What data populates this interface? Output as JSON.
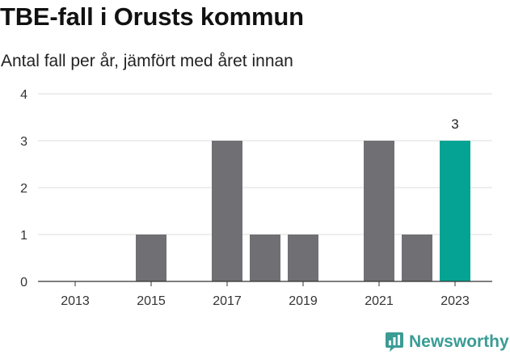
{
  "colors": {
    "bar": "#707074",
    "highlight": "#05a394",
    "grid": "#dddddd",
    "axis": "#333333",
    "brand": "#3a9c95"
  },
  "brand": {
    "name": "Newsworthy",
    "icon": "bar-chart-icon"
  },
  "chart_data": {
    "type": "bar",
    "title": "TBE-fall i Orusts kommun",
    "subtitle": "Antal fall per år, jämfört med året innan",
    "categories": [
      "2013",
      "2014",
      "2015",
      "2016",
      "2017",
      "2018",
      "2019",
      "2020",
      "2021",
      "2022",
      "2023"
    ],
    "values": [
      0,
      0,
      1,
      0,
      3,
      1,
      1,
      0,
      3,
      1,
      3
    ],
    "highlight_index": 10,
    "x_ticks": [
      "2013",
      "2015",
      "2017",
      "2019",
      "2021",
      "2023"
    ],
    "y_ticks": [
      0,
      1,
      2,
      3,
      4
    ],
    "ylim": [
      0,
      4
    ],
    "xlabel": "",
    "ylabel": "",
    "grid": true,
    "data_labels": [
      {
        "index": 10,
        "text": "3"
      }
    ]
  }
}
